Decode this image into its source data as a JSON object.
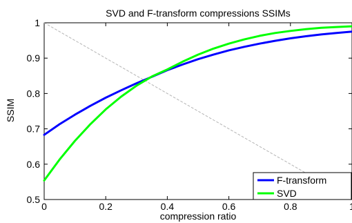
{
  "chart_data": {
    "type": "line",
    "title": "SVD and F-transform compressions SSIMs",
    "xlabel": "compression ratio",
    "ylabel": "SSIM",
    "xlim": [
      0,
      1
    ],
    "ylim": [
      0.5,
      1
    ],
    "xticks": [
      0,
      0.2,
      0.4,
      0.6,
      0.8,
      1
    ],
    "yticks": [
      0.5,
      0.6,
      0.7,
      0.8,
      0.9,
      1
    ],
    "xtick_labels": [
      "0",
      "0.2",
      "0.4",
      "0.6",
      "0.8",
      "1"
    ],
    "ytick_labels": [
      "0.5",
      "0.6",
      "0.7",
      "0.8",
      "0.9",
      "1"
    ],
    "grid": false,
    "legend_position": "bottom-right",
    "series": [
      {
        "name": "F-transform",
        "color": "#0000ff",
        "x": [
          0,
          0.05,
          0.1,
          0.15,
          0.2,
          0.25,
          0.3,
          0.35,
          0.4,
          0.45,
          0.5,
          0.55,
          0.6,
          0.65,
          0.7,
          0.75,
          0.8,
          0.85,
          0.9,
          0.95,
          1
        ],
        "y": [
          0.683,
          0.713,
          0.74,
          0.765,
          0.788,
          0.809,
          0.829,
          0.847,
          0.866,
          0.882,
          0.897,
          0.91,
          0.922,
          0.932,
          0.941,
          0.949,
          0.956,
          0.962,
          0.967,
          0.971,
          0.975
        ]
      },
      {
        "name": "SVD",
        "color": "#00ff00",
        "x": [
          0,
          0.05,
          0.1,
          0.15,
          0.2,
          0.25,
          0.3,
          0.35,
          0.4,
          0.45,
          0.5,
          0.55,
          0.6,
          0.65,
          0.7,
          0.75,
          0.8,
          0.85,
          0.9,
          0.95,
          1
        ],
        "y": [
          0.554,
          0.613,
          0.666,
          0.713,
          0.755,
          0.791,
          0.822,
          0.848,
          0.868,
          0.89,
          0.91,
          0.927,
          0.941,
          0.953,
          0.963,
          0.971,
          0.977,
          0.982,
          0.986,
          0.988,
          0.99
        ]
      },
      {
        "name": "",
        "color": "#b4b4b4",
        "dashed": true,
        "x": [
          0,
          1
        ],
        "y": [
          1,
          0.5
        ]
      }
    ]
  }
}
